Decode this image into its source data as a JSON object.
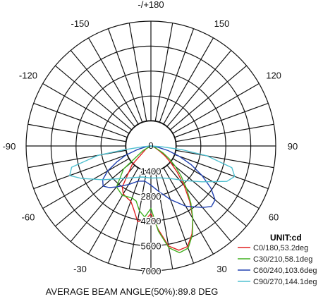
{
  "chart_data": {
    "type": "polar",
    "unit_label": "UNIT:cd",
    "footer": "AVERAGE BEAM ANGLE(50%):89.8 DEG",
    "center_label": "0",
    "radial_ticks": [
      1400,
      2800,
      4200,
      5600,
      7000
    ],
    "radial_tick_labels": [
      "1400",
      "2800",
      "4200",
      "5600",
      "7000"
    ],
    "rmax": 7000,
    "angle_labels": [
      {
        "angle": 180,
        "text": "-/+180"
      },
      {
        "angle": -150,
        "text": "-150"
      },
      {
        "angle": 150,
        "text": "150"
      },
      {
        "angle": -120,
        "text": "-120"
      },
      {
        "angle": 120,
        "text": "120"
      },
      {
        "angle": -90,
        "text": "-90"
      },
      {
        "angle": 90,
        "text": "90"
      },
      {
        "angle": -60,
        "text": "-60"
      },
      {
        "angle": 60,
        "text": "60"
      },
      {
        "angle": -30,
        "text": "-30"
      },
      {
        "angle": 30,
        "text": "30"
      }
    ],
    "series": [
      {
        "name": "C0/180,53.2deg",
        "color": "#e02020",
        "points": [
          [
            -90,
            0
          ],
          [
            -60,
            300
          ],
          [
            -45,
            1500
          ],
          [
            -35,
            2800
          ],
          [
            -30,
            3100
          ],
          [
            -25,
            3200
          ],
          [
            -20,
            3300
          ],
          [
            -15,
            3700
          ],
          [
            -10,
            4300
          ],
          [
            -5,
            4200
          ],
          [
            0,
            3800
          ],
          [
            5,
            4700
          ],
          [
            10,
            5700
          ],
          [
            15,
            6050
          ],
          [
            20,
            6000
          ],
          [
            25,
            5450
          ],
          [
            30,
            4700
          ],
          [
            35,
            3800
          ],
          [
            40,
            2900
          ],
          [
            45,
            2100
          ],
          [
            50,
            1450
          ],
          [
            55,
            950
          ],
          [
            60,
            550
          ],
          [
            70,
            200
          ],
          [
            90,
            0
          ]
        ]
      },
      {
        "name": "C30/210,58.1deg",
        "color": "#40b020",
        "points": [
          [
            -90,
            0
          ],
          [
            -60,
            500
          ],
          [
            -50,
            2000
          ],
          [
            -40,
            3000
          ],
          [
            -30,
            3200
          ],
          [
            -20,
            3100
          ],
          [
            -15,
            3200
          ],
          [
            -10,
            3700
          ],
          [
            -5,
            4000
          ],
          [
            0,
            3500
          ],
          [
            5,
            4800
          ],
          [
            10,
            5800
          ],
          [
            15,
            6200
          ],
          [
            20,
            6100
          ],
          [
            25,
            5500
          ],
          [
            30,
            4700
          ],
          [
            35,
            3900
          ],
          [
            40,
            3100
          ],
          [
            45,
            2400
          ],
          [
            50,
            1800
          ],
          [
            55,
            1250
          ],
          [
            60,
            800
          ],
          [
            70,
            250
          ],
          [
            90,
            0
          ]
        ]
      },
      {
        "name": "C60/240,103.6deg",
        "color": "#2040b0",
        "points": [
          [
            -90,
            0
          ],
          [
            -80,
            300
          ],
          [
            -75,
            800
          ],
          [
            -70,
            1500
          ],
          [
            -65,
            2100
          ],
          [
            -60,
            2800
          ],
          [
            -55,
            3300
          ],
          [
            -50,
            3500
          ],
          [
            -45,
            3300
          ],
          [
            -40,
            3000
          ],
          [
            -30,
            2500
          ],
          [
            -20,
            2100
          ],
          [
            -10,
            2000
          ],
          [
            0,
            2200
          ],
          [
            10,
            2600
          ],
          [
            20,
            3200
          ],
          [
            30,
            3900
          ],
          [
            40,
            4500
          ],
          [
            45,
            4800
          ],
          [
            50,
            4700
          ],
          [
            55,
            4100
          ],
          [
            60,
            3300
          ],
          [
            65,
            2500
          ],
          [
            70,
            1700
          ],
          [
            75,
            1000
          ],
          [
            80,
            400
          ],
          [
            90,
            0
          ]
        ]
      },
      {
        "name": "C90/270,144.1deg",
        "color": "#50c0d0",
        "points": [
          [
            -90,
            0
          ],
          [
            -85,
            400
          ],
          [
            -82,
            1500
          ],
          [
            -80,
            3000
          ],
          [
            -75,
            4600
          ],
          [
            -70,
            4850
          ],
          [
            -65,
            4300
          ],
          [
            -55,
            3300
          ],
          [
            -45,
            2600
          ],
          [
            -30,
            2050
          ],
          [
            -15,
            1800
          ],
          [
            0,
            1800
          ],
          [
            15,
            1850
          ],
          [
            30,
            2100
          ],
          [
            45,
            2750
          ],
          [
            55,
            3500
          ],
          [
            65,
            4700
          ],
          [
            70,
            5000
          ],
          [
            75,
            4700
          ],
          [
            80,
            3200
          ],
          [
            83,
            1800
          ],
          [
            86,
            600
          ],
          [
            90,
            0
          ]
        ]
      }
    ]
  }
}
